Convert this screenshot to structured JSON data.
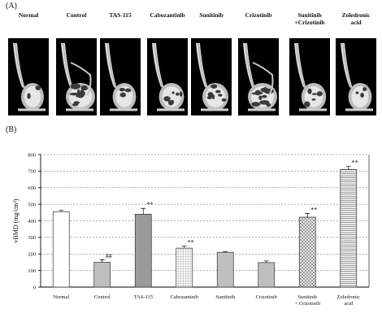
{
  "panel_a": {
    "label": "(A)",
    "scans": [
      {
        "name_lines": [
          "Normal",
          ""
        ],
        "icon": "bone-ct-scan-icon"
      },
      {
        "name_lines": [
          "Control",
          ""
        ],
        "icon": "bone-ct-scan-icon"
      },
      {
        "name_lines": [
          "TAS-115",
          ""
        ],
        "icon": "bone-ct-scan-icon"
      },
      {
        "name_lines": [
          "Cabozantinib",
          ""
        ],
        "icon": "bone-ct-scan-icon"
      },
      {
        "name_lines": [
          "Sunitinib",
          ""
        ],
        "icon": "bone-ct-scan-icon"
      },
      {
        "name_lines": [
          "Crizotinib",
          ""
        ],
        "icon": "bone-ct-scan-icon"
      },
      {
        "name_lines": [
          "Sunitinib",
          "+Crizotinib"
        ],
        "icon": "bone-ct-scan-icon"
      },
      {
        "name_lines": [
          "Zoledronic",
          "acid"
        ],
        "icon": "bone-ct-scan-icon"
      }
    ]
  },
  "panel_b": {
    "label": "(B)"
  },
  "chart_data": {
    "type": "bar",
    "categories": [
      "Normal",
      "Control",
      "TAS-115",
      "Cabozantinib",
      "Sunitinib",
      "Crizotinib",
      "Sunitinib + Crizotinib",
      "Zoledronic acid"
    ],
    "category_label_lines": [
      [
        "Normal"
      ],
      [
        "Control"
      ],
      [
        "TAS-115"
      ],
      [
        "Cabozantinib"
      ],
      [
        "Sunitinib"
      ],
      [
        "Crizotinib"
      ],
      [
        "Sunitinib",
        "+ Crizotinib"
      ],
      [
        "Zoledronic",
        "acid"
      ]
    ],
    "values": [
      455,
      150,
      440,
      235,
      210,
      148,
      422,
      710
    ],
    "errors": [
      8,
      15,
      35,
      12,
      5,
      10,
      22,
      18
    ],
    "significance": [
      "",
      "##",
      "**",
      "**",
      "",
      "",
      "**",
      "**"
    ],
    "fills": [
      "white",
      "gray",
      "darkgray",
      "grid",
      "gray",
      "gray",
      "diamond",
      "hlines"
    ],
    "ylabel": "vBMD (mg/cm³)",
    "ylim": [
      0,
      800
    ],
    "yticks": [
      0,
      100,
      200,
      300,
      400,
      500,
      600,
      700,
      800
    ],
    "grid": "dashed horizontal"
  }
}
